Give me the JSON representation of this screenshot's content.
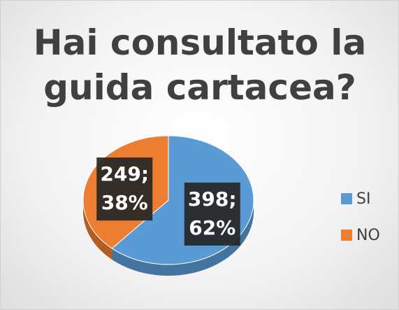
{
  "chart_data": {
    "type": "pie",
    "title": "Hai consultato la guida cartacea?",
    "categories": [
      "SI",
      "NO"
    ],
    "values": [
      398,
      249
    ],
    "value_labels": [
      "398;",
      "249;"
    ],
    "percent_labels": [
      "62%",
      "38%"
    ],
    "colors": [
      "#5b9bd5",
      "#ed7d31"
    ],
    "legend": "right"
  }
}
